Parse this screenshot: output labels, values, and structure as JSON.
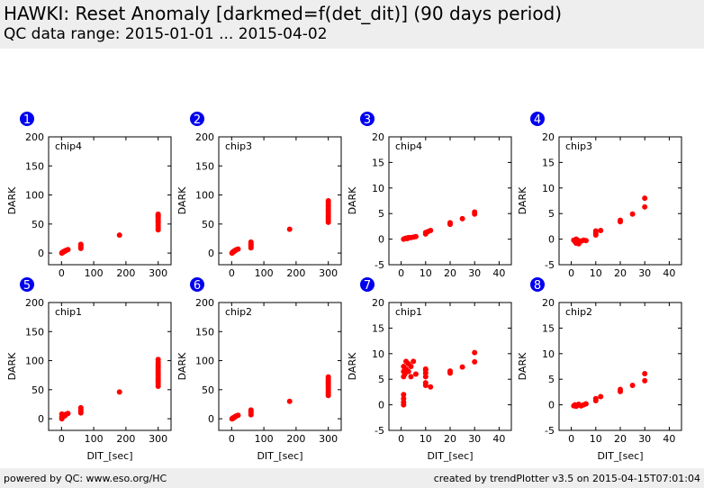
{
  "header": {
    "title": "HAWKI: Reset Anomaly [darkmed=f(det_dit)] (90 days period)",
    "subtitle": "QC data range: 2015-01-01 ... 2015-04-02"
  },
  "footer": {
    "left": "powered by QC: www.eso.org/HC",
    "right": "created by trendPlotter v3.5 on 2015-04-15T07:01:04"
  },
  "colors": {
    "marker": "#ff0000",
    "badge": "#0000ee",
    "header_bg": "#eeeeee"
  },
  "chart_data": [
    {
      "panel": "1",
      "type": "scatter",
      "label": "chip4",
      "xlabel": "",
      "ylabel": "DARK",
      "xlim": [
        -40,
        340
      ],
      "ylim": [
        -20,
        200
      ],
      "xticks": [
        0,
        100,
        200,
        300
      ],
      "yticks": [
        0,
        50,
        100,
        150,
        200
      ],
      "x": [
        1,
        2,
        3,
        5,
        6,
        8,
        10,
        12,
        15,
        20,
        60,
        60,
        60,
        60,
        180,
        300,
        300,
        300,
        300,
        300,
        300,
        300,
        300,
        300,
        300
      ],
      "y": [
        0,
        1,
        1,
        2,
        2,
        3,
        3,
        4,
        5,
        6,
        8,
        10,
        13,
        15,
        31,
        40,
        44,
        48,
        52,
        55,
        58,
        61,
        63,
        65,
        67
      ]
    },
    {
      "panel": "2",
      "type": "scatter",
      "label": "chip3",
      "xlabel": "",
      "ylabel": "DARK",
      "xlim": [
        -40,
        340
      ],
      "ylim": [
        -20,
        200
      ],
      "xticks": [
        0,
        100,
        200,
        300
      ],
      "yticks": [
        0,
        50,
        100,
        150,
        200
      ],
      "x": [
        1,
        2,
        3,
        5,
        6,
        8,
        10,
        12,
        15,
        20,
        60,
        60,
        60,
        60,
        60,
        180,
        300,
        300,
        300,
        300,
        300,
        300,
        300,
        300,
        300,
        300,
        300,
        300
      ],
      "y": [
        0,
        1,
        1,
        2,
        3,
        3,
        4,
        5,
        6,
        7,
        9,
        12,
        14,
        16,
        19,
        41,
        53,
        57,
        60,
        63,
        66,
        70,
        73,
        76,
        80,
        83,
        87,
        90
      ]
    },
    {
      "panel": "3",
      "type": "scatter",
      "label": "chip4",
      "xlabel": "",
      "ylabel": "DARK",
      "xlim": [
        -5,
        45
      ],
      "ylim": [
        -5,
        20
      ],
      "xticks": [
        0,
        10,
        20,
        30,
        40
      ],
      "yticks": [
        -5,
        0,
        5,
        10,
        15,
        20
      ],
      "x": [
        1,
        1.5,
        2,
        2.5,
        3,
        4,
        5,
        6,
        10,
        10,
        11,
        12,
        20,
        20,
        25,
        30,
        30
      ],
      "y": [
        0,
        0.1,
        0.2,
        0.1,
        0.3,
        0.3,
        0.4,
        0.5,
        1.0,
        1.3,
        1.5,
        1.7,
        2.9,
        3.2,
        4.0,
        4.9,
        5.3
      ]
    },
    {
      "panel": "4",
      "type": "scatter",
      "label": "chip3",
      "xlabel": "",
      "ylabel": "DARK",
      "xlim": [
        -5,
        45
      ],
      "ylim": [
        -5,
        20
      ],
      "xticks": [
        0,
        10,
        20,
        30,
        40
      ],
      "yticks": [
        -5,
        0,
        5,
        10,
        15,
        20
      ],
      "x": [
        1,
        1.5,
        2,
        2,
        2.5,
        3,
        3,
        4,
        5,
        6,
        10,
        10,
        10,
        12,
        20,
        20,
        25,
        30,
        30
      ],
      "y": [
        -0.2,
        -0.5,
        -0.8,
        0,
        -0.6,
        -0.3,
        -0.9,
        -0.4,
        -0.2,
        -0.3,
        0.8,
        1.2,
        1.6,
        1.7,
        3.4,
        3.7,
        4.9,
        6.3,
        8.0
      ]
    },
    {
      "panel": "5",
      "type": "scatter",
      "label": "chip1",
      "xlabel": "DIT_[sec]",
      "ylabel": "DARK",
      "xlim": [
        -40,
        340
      ],
      "ylim": [
        -20,
        200
      ],
      "xticks": [
        0,
        100,
        200,
        300
      ],
      "yticks": [
        0,
        50,
        100,
        150,
        200
      ],
      "x": [
        1,
        1,
        1,
        2,
        3,
        5,
        6,
        8,
        10,
        12,
        15,
        20,
        60,
        60,
        60,
        60,
        180,
        300,
        300,
        300,
        300,
        300,
        300,
        300,
        300,
        300,
        300,
        300,
        300,
        300
      ],
      "y": [
        0,
        3,
        8,
        2,
        5,
        4,
        7,
        6,
        5,
        6,
        8,
        9,
        10,
        13,
        16,
        19,
        46,
        56,
        60,
        64,
        67,
        70,
        74,
        77,
        81,
        85,
        89,
        93,
        97,
        102
      ]
    },
    {
      "panel": "6",
      "type": "scatter",
      "label": "chip2",
      "xlabel": "DIT_[sec]",
      "ylabel": "DARK",
      "xlim": [
        -40,
        340
      ],
      "ylim": [
        -20,
        200
      ],
      "xticks": [
        0,
        100,
        200,
        300
      ],
      "yticks": [
        0,
        50,
        100,
        150,
        200
      ],
      "x": [
        1,
        2,
        3,
        5,
        6,
        8,
        10,
        12,
        15,
        20,
        60,
        60,
        60,
        60,
        180,
        300,
        300,
        300,
        300,
        300,
        300,
        300,
        300,
        300,
        300,
        300
      ],
      "y": [
        0,
        0,
        1,
        1,
        2,
        2,
        3,
        4,
        5,
        6,
        7,
        10,
        13,
        15,
        30,
        40,
        43,
        46,
        50,
        53,
        56,
        59,
        62,
        65,
        68,
        72
      ]
    },
    {
      "panel": "7",
      "type": "scatter",
      "label": "chip1",
      "xlabel": "DIT_[sec]",
      "ylabel": "DARK",
      "xlim": [
        -5,
        45
      ],
      "ylim": [
        -5,
        20
      ],
      "xticks": [
        0,
        10,
        20,
        30,
        40
      ],
      "yticks": [
        -5,
        0,
        5,
        10,
        15,
        20
      ],
      "x": [
        1,
        1,
        1,
        1,
        1,
        1,
        1,
        1.5,
        2,
        2,
        3,
        3,
        4,
        4,
        5,
        6,
        10,
        10,
        10,
        10,
        10,
        10,
        12,
        20,
        20,
        25,
        30,
        30
      ],
      "y": [
        0,
        0.5,
        1.2,
        2.0,
        5.5,
        6.5,
        7.5,
        6.0,
        8.5,
        7.0,
        6.5,
        8.0,
        5.5,
        7.5,
        8.5,
        6.0,
        5.5,
        6.2,
        7.0,
        4.3,
        6.8,
        3.8,
        3.5,
        6.2,
        6.6,
        7.4,
        8.4,
        10.2
      ]
    },
    {
      "panel": "8",
      "type": "scatter",
      "label": "chip2",
      "xlabel": "DIT_[sec]",
      "ylabel": "DARK",
      "xlim": [
        -5,
        45
      ],
      "ylim": [
        -5,
        20
      ],
      "xticks": [
        0,
        10,
        20,
        30,
        40
      ],
      "yticks": [
        -5,
        0,
        5,
        10,
        15,
        20
      ],
      "x": [
        1,
        1.5,
        2,
        2.5,
        3,
        4,
        5,
        6,
        10,
        10,
        12,
        20,
        20,
        25,
        30,
        30
      ],
      "y": [
        -0.2,
        0,
        -0.3,
        -0.1,
        0.1,
        -0.2,
        0,
        0.2,
        0.8,
        1.2,
        1.6,
        2.6,
        3.0,
        3.8,
        4.7,
        6.1
      ]
    }
  ]
}
